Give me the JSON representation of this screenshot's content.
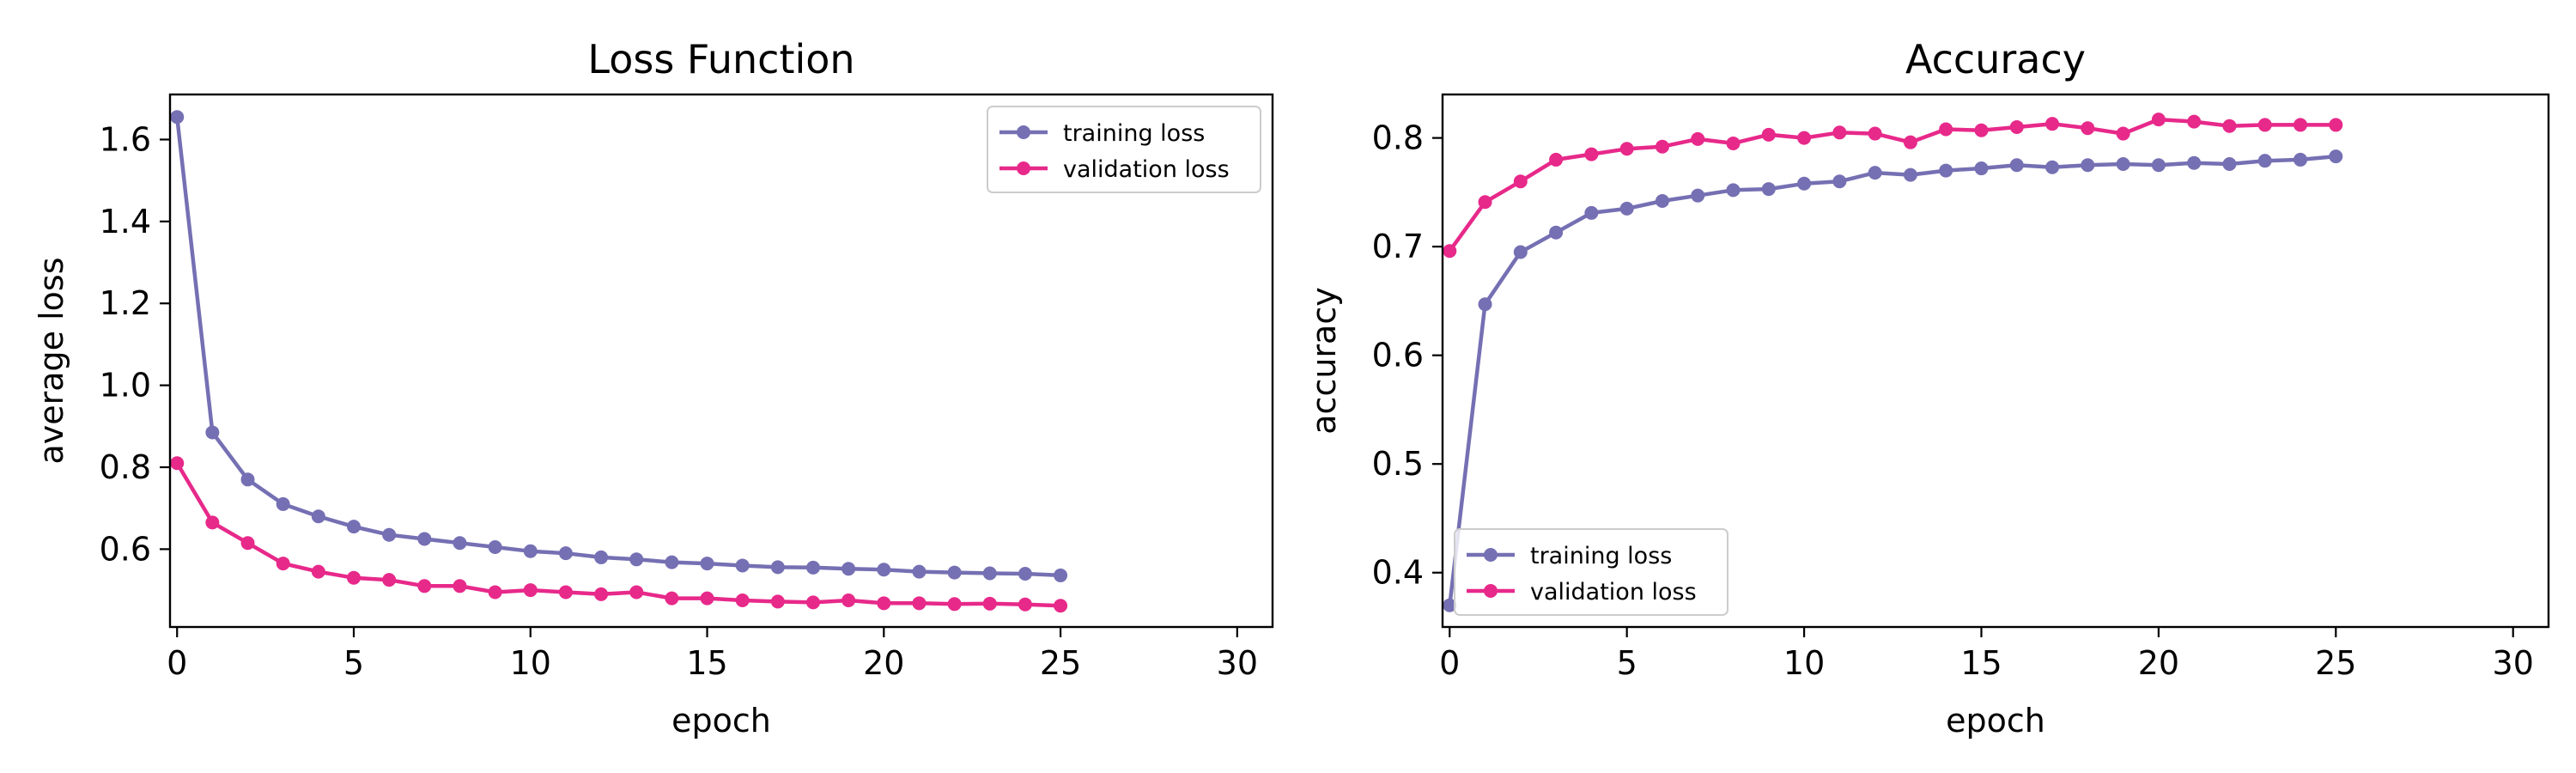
{
  "chart_data": [
    {
      "type": "line",
      "title": "Loss Function",
      "xlabel": "epoch",
      "ylabel": "average loss",
      "xlim": [
        -0.2,
        31
      ],
      "ylim": [
        0.41,
        1.71
      ],
      "xticks": [
        "0",
        "5",
        "10",
        "15",
        "20",
        "25",
        "30"
      ],
      "xtick_values": [
        0,
        5,
        10,
        15,
        20,
        25,
        30
      ],
      "yticks": [
        "0.6",
        "0.8",
        "1.0",
        "1.2",
        "1.4",
        "1.6"
      ],
      "ytick_values": [
        0.6,
        0.8,
        1.0,
        1.2,
        1.4,
        1.6
      ],
      "legend_position": "top-right",
      "x": [
        0,
        1,
        2,
        3,
        4,
        5,
        6,
        7,
        8,
        9,
        10,
        11,
        12,
        13,
        14,
        15,
        16,
        17,
        18,
        19,
        20,
        21,
        22,
        23,
        24,
        25
      ],
      "series": [
        {
          "name": "training loss",
          "color": "#7570b3",
          "values": [
            1.655,
            0.885,
            0.77,
            0.71,
            0.68,
            0.655,
            0.635,
            0.625,
            0.615,
            0.605,
            0.595,
            0.59,
            0.58,
            0.575,
            0.568,
            0.565,
            0.56,
            0.556,
            0.555,
            0.552,
            0.55,
            0.545,
            0.543,
            0.541,
            0.54,
            0.536
          ]
        },
        {
          "name": "validation loss",
          "color": "#e7298a",
          "values": [
            0.81,
            0.665,
            0.615,
            0.565,
            0.545,
            0.53,
            0.525,
            0.51,
            0.51,
            0.495,
            0.5,
            0.495,
            0.49,
            0.495,
            0.48,
            0.48,
            0.475,
            0.472,
            0.47,
            0.475,
            0.468,
            0.468,
            0.466,
            0.467,
            0.465,
            0.462
          ]
        }
      ]
    },
    {
      "type": "line",
      "title": "Accuracy",
      "xlabel": "epoch",
      "ylabel": "accuracy",
      "xlim": [
        -0.2,
        31
      ],
      "ylim": [
        0.35,
        0.84
      ],
      "xticks": [
        "0",
        "5",
        "10",
        "15",
        "20",
        "25",
        "30"
      ],
      "xtick_values": [
        0,
        5,
        10,
        15,
        20,
        25,
        30
      ],
      "yticks": [
        "0.4",
        "0.5",
        "0.6",
        "0.7",
        "0.8"
      ],
      "ytick_values": [
        0.4,
        0.5,
        0.6,
        0.7,
        0.8
      ],
      "legend_position": "bottom-left",
      "x": [
        0,
        1,
        2,
        3,
        4,
        5,
        6,
        7,
        8,
        9,
        10,
        11,
        12,
        13,
        14,
        15,
        16,
        17,
        18,
        19,
        20,
        21,
        22,
        23,
        24,
        25
      ],
      "series": [
        {
          "name": "training loss",
          "color": "#7570b3",
          "values": [
            0.37,
            0.647,
            0.695,
            0.713,
            0.731,
            0.735,
            0.742,
            0.747,
            0.752,
            0.753,
            0.758,
            0.76,
            0.768,
            0.766,
            0.77,
            0.772,
            0.775,
            0.773,
            0.775,
            0.776,
            0.775,
            0.777,
            0.776,
            0.779,
            0.78,
            0.783
          ]
        },
        {
          "name": "validation loss",
          "color": "#e7298a",
          "values": [
            0.696,
            0.741,
            0.76,
            0.78,
            0.785,
            0.79,
            0.792,
            0.799,
            0.795,
            0.803,
            0.8,
            0.805,
            0.804,
            0.796,
            0.808,
            0.807,
            0.81,
            0.813,
            0.809,
            0.804,
            0.817,
            0.815,
            0.811,
            0.812,
            0.812,
            0.812
          ]
        }
      ]
    }
  ]
}
